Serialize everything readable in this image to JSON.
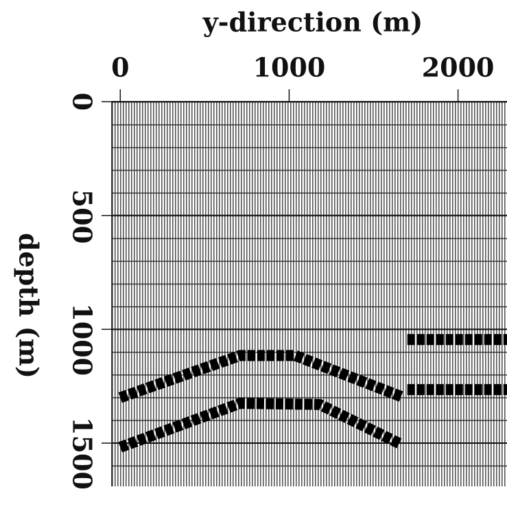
{
  "chart_data": {
    "type": "seismic",
    "xlabel": "y-direction  (m)",
    "ylabel": "depth  (m)",
    "xlim": [
      -50,
      2290
    ],
    "xticks": [
      0,
      1000,
      2000
    ],
    "ylim": [
      0,
      1690
    ],
    "yticks": [
      0,
      500,
      1000,
      1500
    ],
    "grid": true,
    "y_inverted": true,
    "x_axis_position": "top",
    "series": [
      {
        "color": "#000000",
        "x": [
          0,
          710,
          1035,
          1663
        ],
        "values": [
          1300,
          1115,
          1115,
          1295
        ]
      },
      {
        "color": "#000000",
        "x": [
          0,
          710,
          1180,
          1663
        ],
        "values": [
          1518,
          1325,
          1330,
          1505
        ]
      },
      {
        "color": "#000000",
        "x": [
          1700,
          2290
        ],
        "values": [
          1045,
          1045
        ]
      },
      {
        "color": "#000000",
        "x": [
          1700,
          2290
        ],
        "values": [
          1265,
          1265
        ]
      }
    ]
  }
}
